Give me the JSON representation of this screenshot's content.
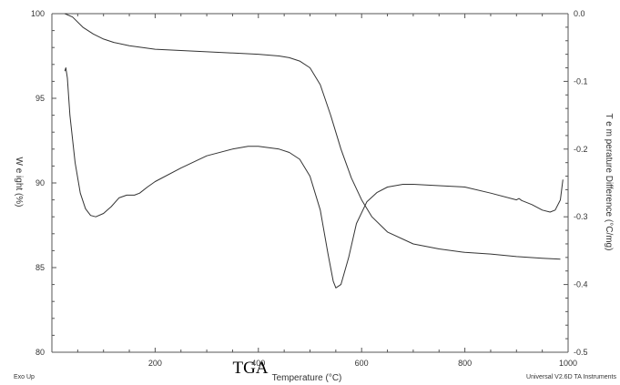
{
  "colors": {
    "axis": "#555555",
    "line": "#333333",
    "text": "#333333"
  },
  "annotations": {
    "exo_up": "Exo Up",
    "instrument": "Universal V2.6D TA Instruments",
    "tga": "TGA"
  },
  "chart_data": {
    "type": "line",
    "xlabel": "Temperature (°C)",
    "ylabel_left": "W e ight (%)",
    "ylabel_right": "T e m perature Difference (°C/mg)",
    "xlim": [
      0,
      1000
    ],
    "ylim_left": [
      80,
      100
    ],
    "ylim_right": [
      -0.5,
      0.0
    ],
    "x_ticks": [
      "200",
      "400",
      "600",
      "800",
      "1000"
    ],
    "y_left_ticks": [
      "80",
      "85",
      "90",
      "95",
      "100"
    ],
    "y_right_ticks": [
      "-0.5",
      "-0.4",
      "-0.3",
      "-0.2",
      "-0.1",
      "0.0"
    ],
    "grid": false,
    "series": [
      {
        "axis": "left",
        "points": [
          [
            25,
            100.0
          ],
          [
            40,
            99.8
          ],
          [
            60,
            99.2
          ],
          [
            80,
            98.8
          ],
          [
            100,
            98.5
          ],
          [
            120,
            98.3
          ],
          [
            150,
            98.1
          ],
          [
            200,
            97.9
          ],
          [
            300,
            97.75
          ],
          [
            400,
            97.6
          ],
          [
            440,
            97.5
          ],
          [
            460,
            97.4
          ],
          [
            480,
            97.2
          ],
          [
            500,
            96.8
          ],
          [
            520,
            95.8
          ],
          [
            540,
            94.0
          ],
          [
            560,
            92.0
          ],
          [
            580,
            90.3
          ],
          [
            600,
            89.0
          ],
          [
            620,
            88.0
          ],
          [
            650,
            87.1
          ],
          [
            700,
            86.4
          ],
          [
            750,
            86.1
          ],
          [
            800,
            85.9
          ],
          [
            850,
            85.8
          ],
          [
            900,
            85.65
          ],
          [
            950,
            85.55
          ],
          [
            985,
            85.5
          ]
        ]
      },
      {
        "axis": "right",
        "points": [
          [
            25,
            -0.085
          ],
          [
            27,
            -0.08
          ],
          [
            30,
            -0.095
          ],
          [
            35,
            -0.15
          ],
          [
            45,
            -0.22
          ],
          [
            55,
            -0.265
          ],
          [
            65,
            -0.288
          ],
          [
            75,
            -0.298
          ],
          [
            85,
            -0.3
          ],
          [
            100,
            -0.295
          ],
          [
            115,
            -0.285
          ],
          [
            130,
            -0.272
          ],
          [
            145,
            -0.268
          ],
          [
            160,
            -0.268
          ],
          [
            170,
            -0.265
          ],
          [
            185,
            -0.256
          ],
          [
            200,
            -0.248
          ],
          [
            250,
            -0.228
          ],
          [
            300,
            -0.21
          ],
          [
            350,
            -0.2
          ],
          [
            380,
            -0.196
          ],
          [
            400,
            -0.196
          ],
          [
            420,
            -0.198
          ],
          [
            440,
            -0.2
          ],
          [
            460,
            -0.205
          ],
          [
            480,
            -0.215
          ],
          [
            500,
            -0.24
          ],
          [
            520,
            -0.29
          ],
          [
            535,
            -0.355
          ],
          [
            545,
            -0.395
          ],
          [
            550,
            -0.405
          ],
          [
            560,
            -0.4
          ],
          [
            575,
            -0.36
          ],
          [
            590,
            -0.31
          ],
          [
            610,
            -0.278
          ],
          [
            630,
            -0.264
          ],
          [
            650,
            -0.256
          ],
          [
            680,
            -0.252
          ],
          [
            700,
            -0.252
          ],
          [
            750,
            -0.254
          ],
          [
            800,
            -0.256
          ],
          [
            850,
            -0.265
          ],
          [
            900,
            -0.275
          ],
          [
            905,
            -0.273
          ],
          [
            910,
            -0.276
          ],
          [
            930,
            -0.282
          ],
          [
            950,
            -0.29
          ],
          [
            965,
            -0.293
          ],
          [
            975,
            -0.29
          ],
          [
            985,
            -0.275
          ],
          [
            990,
            -0.245
          ]
        ]
      }
    ]
  }
}
